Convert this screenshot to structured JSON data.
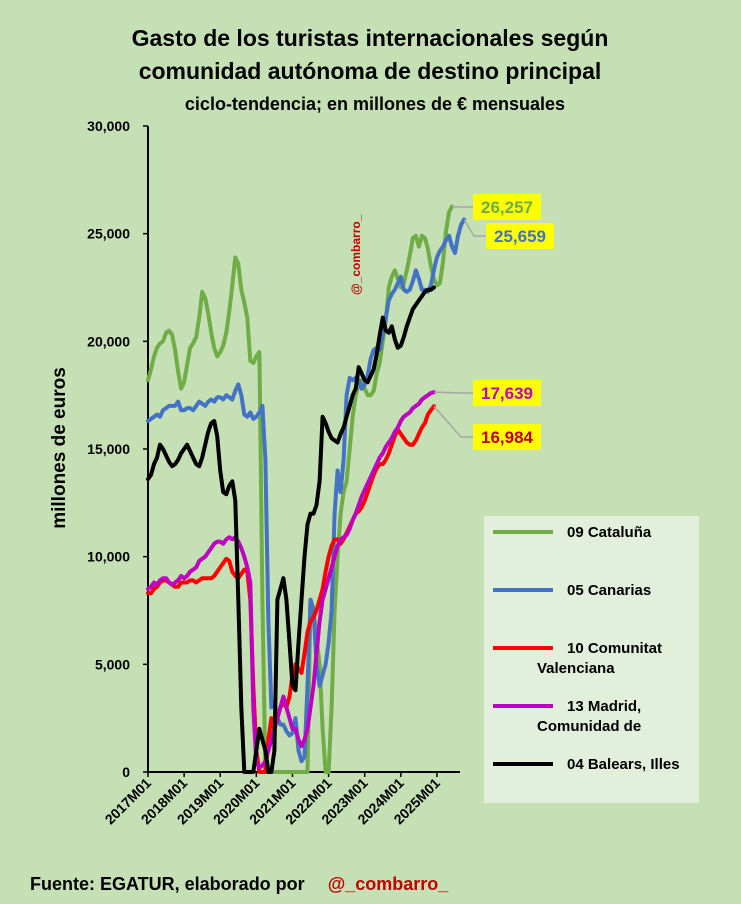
{
  "chart_data": {
    "type": "line",
    "title": "Gasto de los turistas internacionales según",
    "title_line2": "comunidad autónoma de destino principal",
    "subtitle": "ciclo-tendencia;  en  millones de € mensuales",
    "ylabel": "millones de euros",
    "xlabel": "",
    "ylim": [
      0,
      30000
    ],
    "yticks": [
      "0",
      "5,000",
      "10,000",
      "15,000",
      "20,000",
      "25,000",
      "30,000"
    ],
    "xticks": [
      "2017M01",
      "2018M01",
      "2019M01",
      "2020M01",
      "2021M01",
      "2022M01",
      "2023M01",
      "2024M01",
      "2025M01"
    ],
    "x_start": "2017M01",
    "x_end": "2025M08",
    "grid": false,
    "legend_position": "right",
    "watermark": "@_combarro_",
    "source_prefix": "Fuente: EGATUR, elaborado por",
    "source_handle": "@_combarro_",
    "series": [
      {
        "name": "09 Cataluña",
        "color": "#70ad47",
        "end_label": "26,257",
        "label_text_color": "#70ad47",
        "values": [
          18200,
          18700,
          19300,
          19700,
          19900,
          20000,
          20400,
          20500,
          20300,
          19600,
          18600,
          17800,
          18100,
          18900,
          19700,
          19900,
          20200,
          21100,
          22300,
          22000,
          21300,
          20400,
          19700,
          19300,
          19500,
          19800,
          20400,
          21400,
          22600,
          23900,
          23600,
          22400,
          21800,
          21100,
          19100,
          19000,
          19300,
          19500,
          8000,
          0,
          0,
          0,
          0,
          0,
          0,
          0,
          0,
          0,
          0,
          0,
          0,
          0,
          0,
          0,
          8000,
          7600,
          6200,
          5000,
          2000,
          0,
          0,
          3000,
          7500,
          10000,
          12000,
          13000,
          13500,
          15000,
          16500,
          17500,
          18000,
          18200,
          17800,
          17500,
          17500,
          17700,
          18500,
          19000,
          20000,
          21000,
          22500,
          23000,
          23300,
          22900,
          22500,
          22700,
          23300,
          24000,
          24800,
          24900,
          24400,
          24900,
          24800,
          24300,
          23500,
          22900,
          22600,
          22700,
          23700,
          25100,
          26000,
          26257
        ]
      },
      {
        "name": "05 Canarias",
        "color": "#4472c4",
        "end_label": "25,659",
        "label_text_color": "#4472c4",
        "values": [
          16300,
          16400,
          16500,
          16600,
          16500,
          16800,
          16900,
          17000,
          17000,
          17000,
          17200,
          16800,
          16800,
          16900,
          16900,
          16800,
          17000,
          17200,
          17100,
          17000,
          17200,
          17300,
          17200,
          17400,
          17400,
          17300,
          17500,
          17400,
          17300,
          17700,
          18000,
          17500,
          16600,
          16500,
          16700,
          16400,
          16500,
          16700,
          17000,
          14500,
          7000,
          3000,
          3200,
          2500,
          2200,
          2200,
          1900,
          1700,
          1800,
          2500,
          1000,
          500,
          700,
          4000,
          8000,
          7500,
          5000,
          4000,
          4500,
          5000,
          6000,
          7500,
          12000,
          14000,
          13000,
          14500,
          17500,
          18300,
          18200,
          18300,
          18200,
          17800,
          18000,
          18400,
          19200,
          19600,
          19700,
          19600,
          20300,
          21100,
          21900,
          22200,
          22400,
          22700,
          23000,
          22400,
          22300,
          22400,
          22800,
          23300,
          22900,
          22400,
          22400,
          22300,
          22600,
          23300,
          23900,
          24200,
          24400,
          24700,
          24900,
          24400,
          24100,
          24900,
          25400,
          25659
        ]
      },
      {
        "name": "10 Comunitat Valenciana",
        "color": "#ff0000",
        "end_label": "16,984",
        "label_text_color": "#c00000",
        "values": [
          8300,
          8300,
          8500,
          8600,
          8800,
          8900,
          8900,
          8800,
          8700,
          8600,
          8600,
          8800,
          8800,
          8800,
          8900,
          8900,
          8800,
          8900,
          9000,
          9000,
          9000,
          9000,
          9100,
          9300,
          9500,
          9700,
          9900,
          9800,
          9300,
          9100,
          9000,
          9200,
          9400,
          9300,
          8000,
          4000,
          1000,
          0,
          0,
          0,
          1500,
          2500,
          2000,
          2500,
          3000,
          3200,
          3000,
          3500,
          4500,
          5000,
          4800,
          4600,
          5500,
          6500,
          7000,
          7200,
          7500,
          8000,
          8500,
          9300,
          10000,
          10500,
          10800,
          10800,
          10600,
          10800,
          11100,
          11400,
          11700,
          12000,
          12100,
          12300,
          12600,
          13000,
          13400,
          13800,
          14100,
          14300,
          14300,
          14500,
          14800,
          15200,
          15600,
          15900,
          15700,
          15500,
          15300,
          15200,
          15200,
          15400,
          15700,
          16000,
          16200,
          16600,
          16800,
          16984
        ]
      },
      {
        "name": "13 Madrid, Comunidad de",
        "color": "#c000c0",
        "end_label": "17,639",
        "label_text_color": "#c000c0",
        "values": [
          8500,
          8600,
          8800,
          8700,
          8900,
          9000,
          9000,
          8800,
          8700,
          8800,
          8900,
          9100,
          9000,
          9100,
          9300,
          9400,
          9500,
          9800,
          9900,
          10000,
          10200,
          10400,
          10600,
          10700,
          10700,
          10600,
          10800,
          10900,
          10800,
          10900,
          10700,
          10400,
          10000,
          9500,
          8800,
          3000,
          500,
          200,
          300,
          500,
          1000,
          1500,
          2000,
          2500,
          3000,
          3500,
          3000,
          2500,
          2000,
          2000,
          1500,
          1200,
          1500,
          2000,
          3000,
          4000,
          5500,
          7000,
          8000,
          8500,
          9000,
          9500,
          10000,
          10500,
          10800,
          10900,
          11000,
          11300,
          11700,
          12000,
          12400,
          12800,
          13100,
          13400,
          13700,
          14000,
          14300,
          14600,
          14800,
          15100,
          15300,
          15500,
          15800,
          16000,
          16300,
          16500,
          16600,
          16700,
          16900,
          17000,
          17100,
          17300,
          17400,
          17500,
          17600,
          17639
        ]
      },
      {
        "name": "04 Balears, Illes",
        "color": "#000000",
        "end_label": "",
        "values": [
          13600,
          13800,
          14300,
          14600,
          15200,
          15000,
          14700,
          14400,
          14200,
          14300,
          14500,
          14800,
          15000,
          15200,
          14900,
          14600,
          14300,
          14200,
          14600,
          15200,
          15800,
          16200,
          16300,
          15600,
          14000,
          13000,
          12900,
          13300,
          13500,
          12600,
          8000,
          3000,
          0,
          0,
          0,
          0,
          1000,
          2000,
          1500,
          1000,
          0,
          0,
          1000,
          8000,
          8500,
          9000,
          8000,
          6000,
          4000,
          3800,
          6000,
          8000,
          10000,
          11500,
          12000,
          12000,
          12400,
          13500,
          16500,
          16200,
          15800,
          15500,
          15400,
          15300,
          15700,
          16000,
          16500,
          17000,
          17500,
          17800,
          18800,
          18500,
          18200,
          18100,
          18400,
          18700,
          19400,
          20300,
          21100,
          20500,
          20400,
          20700,
          20100,
          19700,
          19800,
          20200,
          20700,
          21100,
          21500,
          21700,
          21900,
          22100,
          22300,
          22400,
          22400,
          22500
        ]
      }
    ]
  }
}
